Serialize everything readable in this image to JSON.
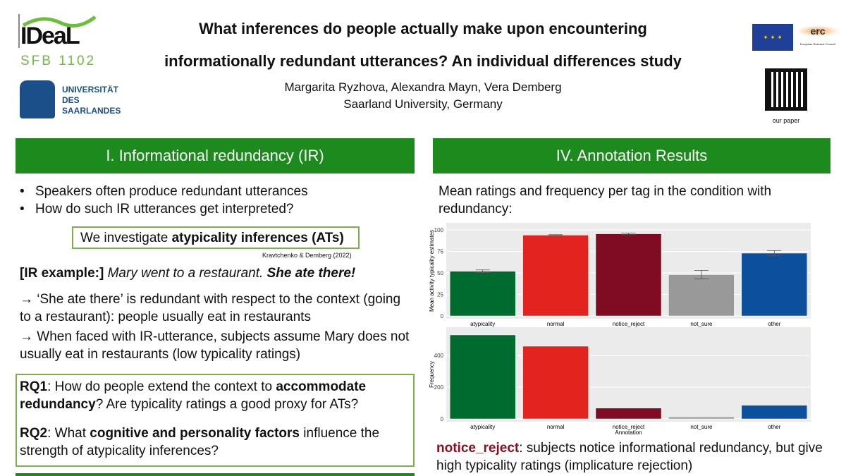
{
  "logos": {
    "ideal": "IDeaL",
    "sfb": "SFB 1102",
    "uni": [
      "UNIVERSITÄT",
      "DES",
      "SAARLANDES"
    ],
    "erc": "erc",
    "erc_sub": "European Research Council",
    "qr_caption": "our paper"
  },
  "header": {
    "title_line1": "What inferences do people actually make upon encountering",
    "title_line2": "informationally redundant utterances? An individual differences study",
    "authors": "Margarita Ryzhova, Alexandra Mayn, Vera Demberg",
    "affiliation": "Saarland University, Germany"
  },
  "left": {
    "heading": "I. Informational redundancy (IR)",
    "bullets": [
      "Speakers often produce redundant utterances",
      "How do such IR utterances get interpreted?"
    ],
    "investigate_prefix": "We investigate ",
    "investigate_bold": "atypicality inferences (ATs)",
    "citation": "Kravtchenko & Demberg (2022)",
    "example_label": "[IR example:]",
    "example_italic": " Mary went to a restaurant. ",
    "example_bold_italic": "She ate there!",
    "arrow1": "→ ‘She ate there’ is redundant with respect to the context (going to a restaurant): people usually eat in restaurants",
    "arrow2": "→ When faced with IR-utterance, subjects assume Mary does not usually eat in restaurants (low typicality ratings)",
    "rq1_label": "RQ1",
    "rq1_a": ": How do people extend the context to ",
    "rq1_b": "accommodate redundancy",
    "rq1_c": "? Are typicality ratings a good proxy for ATs?",
    "rq2_label": "RQ2",
    "rq2_a": ": What ",
    "rq2_b": "cognitive and personality factors",
    "rq2_c": " influence the strength of atypicality inferences?"
  },
  "right": {
    "heading": "IV. Annotation Results",
    "intro": "Mean ratings and frequency per tag in the condition with redundancy:",
    "note_label": "notice_reject",
    "note_text": ": subjects notice informational redundancy, but give high typicality ratings (implicature rejection)"
  },
  "chart_data": [
    {
      "type": "bar",
      "categories": [
        "atypicality",
        "normal",
        "notice_reject",
        "not_sure",
        "other"
      ],
      "values": [
        52,
        94,
        95.5,
        48,
        73
      ],
      "errors": [
        1.5,
        0.5,
        1,
        5,
        3
      ],
      "ylabel": "Mean activity typicality estimates",
      "xlabel": "",
      "yticks": [
        0,
        25,
        50,
        75,
        100
      ],
      "ylim": [
        0,
        105
      ],
      "colors": [
        "#006b2e",
        "#e3231d",
        "#7f0c22",
        "#999999",
        "#0c4f9c"
      ]
    },
    {
      "type": "bar",
      "categories": [
        "atypicality",
        "normal",
        "notice_reject",
        "not_sure",
        "other"
      ],
      "values": [
        529,
        458,
        68,
        12,
        86
      ],
      "ylabel": "Frequency",
      "xlabel": "Annotation",
      "yticks": [
        0,
        200,
        400
      ],
      "ylim": [
        0,
        560
      ],
      "colors": [
        "#006b2e",
        "#e3231d",
        "#7f0c22",
        "#999999",
        "#0c4f9c"
      ]
    }
  ]
}
